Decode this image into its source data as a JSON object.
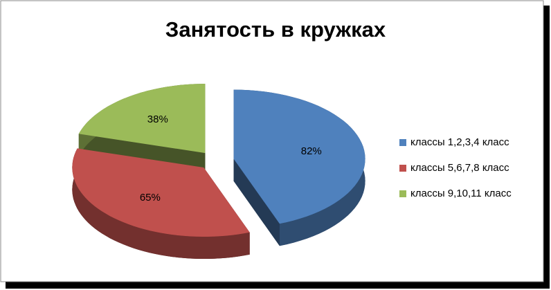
{
  "chart_data": {
    "type": "pie",
    "title": "Занятость в кружках",
    "categories": [
      "классы 1,2,3,4 класс",
      "классы 5,6,7,8 класс",
      "классы 9,10,11 класс"
    ],
    "values": [
      82,
      65,
      38
    ],
    "value_labels": [
      "82%",
      "65%",
      "38%"
    ],
    "colors": [
      "#4f81bd",
      "#c0504d",
      "#9bbb59"
    ],
    "legend": "right"
  }
}
